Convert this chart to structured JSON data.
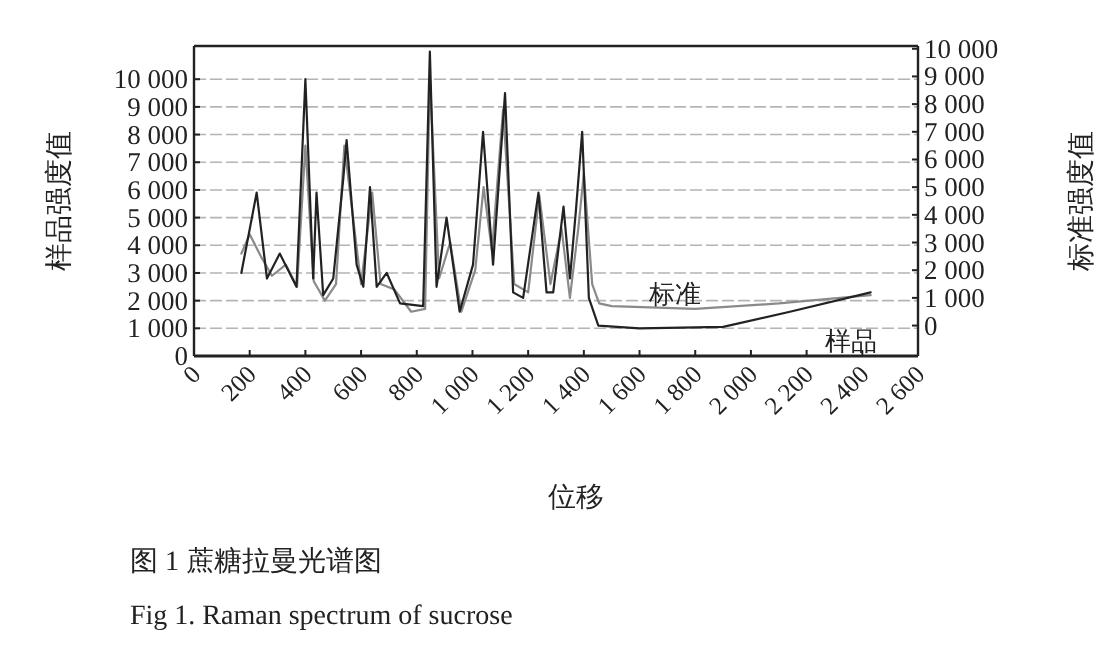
{
  "chart_data": {
    "type": "line",
    "xlabel": "位移",
    "ylabel": "样品强度值",
    "y2label": "标准强度值",
    "annotations": [
      "图 1  蔗糖拉曼光谱图",
      "Fig 1. Raman spectrum of sucrose"
    ],
    "xlim": [
      0,
      2600
    ],
    "ylim": [
      0,
      11200
    ],
    "y2lim": [
      -1100,
      10100
    ],
    "xticks": [
      0,
      200,
      400,
      600,
      800,
      {
        "value": 1000,
        "label": "1 000"
      },
      {
        "value": 1200,
        "label": "1 200"
      },
      {
        "value": 1400,
        "label": "1 400"
      },
      {
        "value": 1600,
        "label": "1 600"
      },
      {
        "value": 1800,
        "label": "1 800"
      },
      {
        "value": 2000,
        "label": "2 000"
      },
      {
        "value": 2200,
        "label": "2 200"
      },
      {
        "value": 2400,
        "label": "2 400"
      },
      {
        "value": 2600,
        "label": "2 600"
      }
    ],
    "yticks": [
      0,
      {
        "value": 1000,
        "label": "1 000"
      },
      {
        "value": 2000,
        "label": "2 000"
      },
      {
        "value": 3000,
        "label": "3 000"
      },
      {
        "value": 4000,
        "label": "4 000"
      },
      {
        "value": 5000,
        "label": "5 000"
      },
      {
        "value": 6000,
        "label": "6 000"
      },
      {
        "value": 7000,
        "label": "7 000"
      },
      {
        "value": 8000,
        "label": "8 000"
      },
      {
        "value": 9000,
        "label": "9 000"
      },
      {
        "value": 10000,
        "label": "10 000"
      }
    ],
    "y2ticks": [
      0,
      {
        "value": 1000,
        "label": "1 000"
      },
      {
        "value": 2000,
        "label": "2 000"
      },
      {
        "value": 3000,
        "label": "3 000"
      },
      {
        "value": 4000,
        "label": "4 000"
      },
      {
        "value": 5000,
        "label": "5 000"
      },
      {
        "value": 6000,
        "label": "6 000"
      },
      {
        "value": 7000,
        "label": "7 000"
      },
      {
        "value": 8000,
        "label": "8 000"
      },
      {
        "value": 9000,
        "label": "9 000"
      },
      {
        "value": 10000,
        "label": "10 000"
      }
    ],
    "grid": "y",
    "legend": false,
    "marker": "none",
    "line_style": "solid",
    "series": [
      {
        "name": "标准",
        "color": "#8a8a8a",
        "axis": "y2",
        "x": [
          170,
          200,
          240,
          280,
          330,
          370,
          400,
          430,
          470,
          510,
          540,
          570,
          600,
          640,
          670,
          720,
          780,
          830,
          847,
          880,
          920,
          960,
          1010,
          1040,
          1070,
          1110,
          1150,
          1200,
          1240,
          1280,
          1320,
          1350,
          1380,
          1400,
          1430,
          1455,
          1500,
          1800,
          2100,
          2430
        ],
        "values": [
          2600,
          3300,
          2500,
          1800,
          2200,
          1400,
          6500,
          1600,
          900,
          1500,
          6500,
          4000,
          1500,
          4800,
          1500,
          1300,
          500,
          600,
          9000,
          1700,
          3000,
          500,
          2000,
          5000,
          2700,
          7800,
          1500,
          1200,
          4700,
          1500,
          3500,
          1000,
          3500,
          5500,
          1500,
          800,
          700,
          600,
          800,
          1100
        ]
      },
      {
        "name": "样品",
        "color": "#222222",
        "x": [
          170,
          225,
          262,
          308,
          368,
          400,
          428,
          440,
          464,
          500,
          536,
          548,
          584,
          608,
          632,
          656,
          692,
          740,
          823,
          847,
          871,
          907,
          954,
          1002,
          1038,
          1074,
          1117,
          1146,
          1182,
          1237,
          1266,
          1290,
          1327,
          1350,
          1371,
          1394,
          1418,
          1452,
          1600,
          1900,
          2140,
          2430
        ],
        "values": [
          3000,
          5900,
          2800,
          3700,
          2500,
          10000,
          2800,
          5900,
          2200,
          2800,
          6400,
          7800,
          3300,
          2500,
          6100,
          2500,
          3000,
          1900,
          1800,
          11000,
          2500,
          5000,
          1600,
          3300,
          8100,
          3300,
          9500,
          2300,
          2100,
          5900,
          2300,
          2300,
          5400,
          2800,
          5200,
          8100,
          2100,
          1100,
          1000,
          1050,
          1600,
          2300
        ]
      }
    ]
  }
}
